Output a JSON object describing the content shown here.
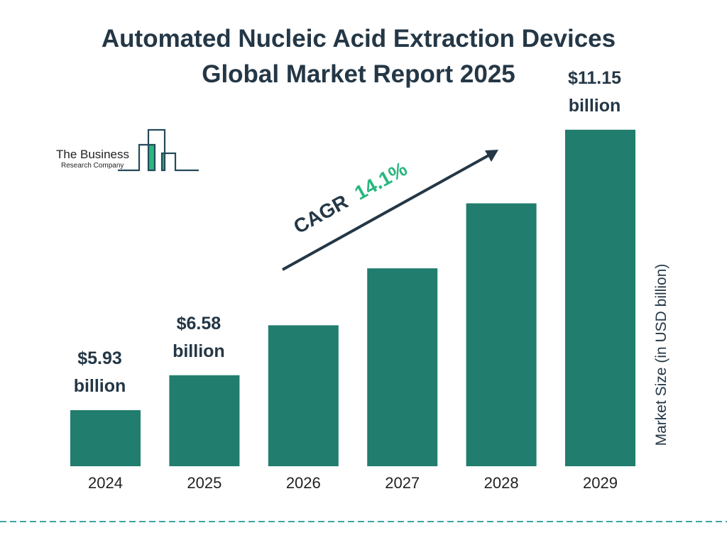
{
  "title_lines": [
    "Automated Nucleic Acid Extraction Devices",
    "Global Market Report 2025"
  ],
  "logo": {
    "line1": "The Business",
    "line2": "Research Company"
  },
  "colors": {
    "bar": "#217d6d",
    "text": "#243746",
    "accent": "#2ab67f",
    "divider": "#3aa6a3"
  },
  "chart_data": {
    "type": "bar",
    "title": "Automated Nucleic Acid Extraction Devices Global Market Report 2025",
    "categories": [
      "2024",
      "2025",
      "2026",
      "2027",
      "2028",
      "2029"
    ],
    "values": [
      5.93,
      6.58,
      7.51,
      8.57,
      9.78,
      11.15
    ],
    "data_labels": [
      {
        "index": 0,
        "value": "$5.93",
        "unit": "billion"
      },
      {
        "index": 1,
        "value": "$6.58",
        "unit": "billion"
      },
      {
        "index": 5,
        "value": "$11.15",
        "unit": "billion"
      }
    ],
    "ylabel": "Market Size (in USD billion)",
    "xlabel": "",
    "grid": false,
    "annotation": {
      "prefix": "CAGR",
      "value": "14.1%"
    }
  }
}
